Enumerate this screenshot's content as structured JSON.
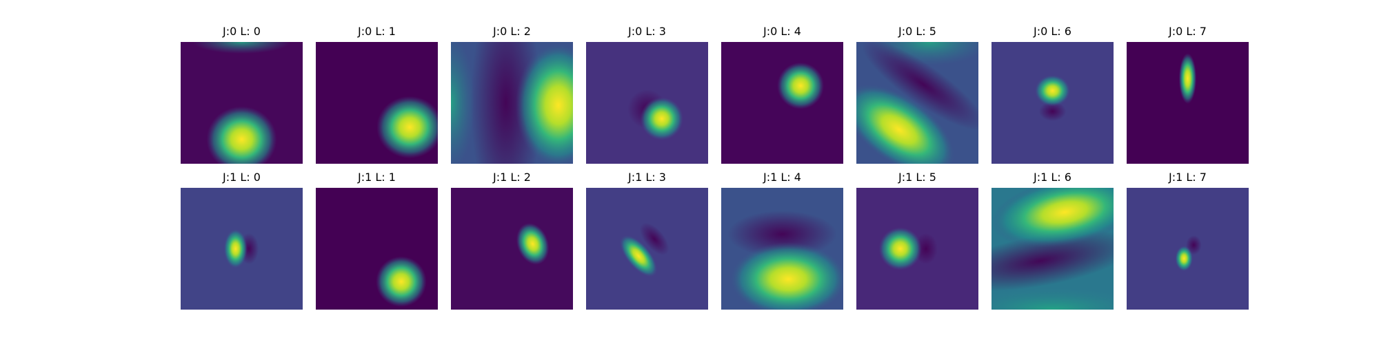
{
  "panels": [
    {
      "title": "J:0 L: 0"
    },
    {
      "title": "J:0 L: 1"
    },
    {
      "title": "J:0 L: 2"
    },
    {
      "title": "J:0 L: 3"
    },
    {
      "title": "J:0 L: 4"
    },
    {
      "title": "J:0 L: 5"
    },
    {
      "title": "J:0 L: 6"
    },
    {
      "title": "J:0 L: 7"
    },
    {
      "title": "J:1 L: 0"
    },
    {
      "title": "J:1 L: 1"
    },
    {
      "title": "J:1 L: 2"
    },
    {
      "title": "J:1 L: 3"
    },
    {
      "title": "J:1 L: 4"
    },
    {
      "title": "J:1 L: 5"
    },
    {
      "title": "J:1 L: 6"
    },
    {
      "title": "J:1 L: 7"
    }
  ]
}
